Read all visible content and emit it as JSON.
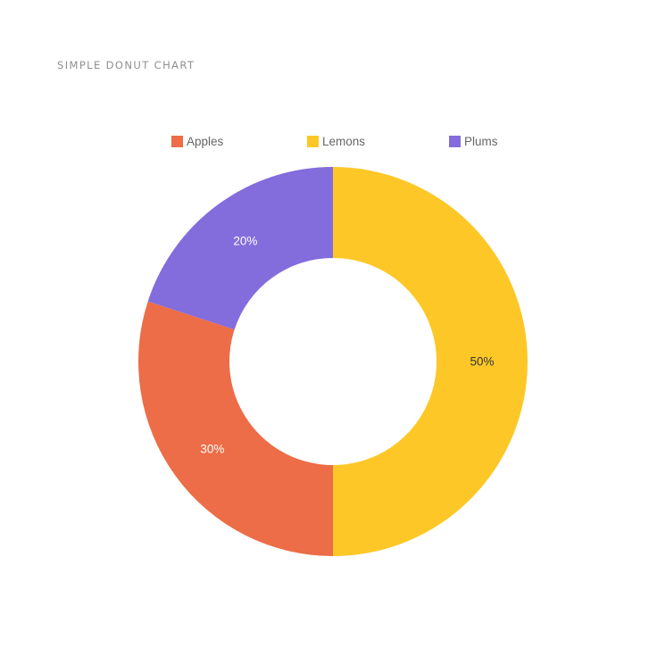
{
  "chart_data": {
    "type": "pie",
    "variant": "donut",
    "title": "SIMPLE DONUT CHART",
    "categories": [
      "Apples",
      "Lemons",
      "Plums"
    ],
    "values": [
      30,
      50,
      20
    ],
    "value_labels": [
      "30%",
      "50%",
      "20%"
    ],
    "colors": [
      "#ec6d47",
      "#fdc827",
      "#836cdc"
    ],
    "label_colors": [
      "#ffffff",
      "#333333",
      "#ffffff"
    ],
    "legend_position": "top"
  }
}
